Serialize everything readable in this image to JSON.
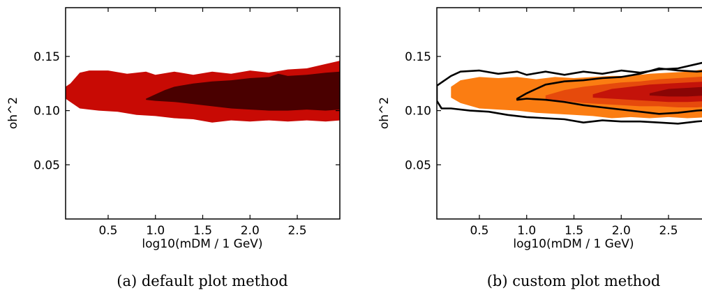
{
  "chart_data": [
    {
      "type": "contour",
      "caption": "(a) default plot method",
      "xlabel": "log10(mDM / 1 GeV)",
      "ylabel": "oh^2",
      "xlim": [
        0.05,
        2.95
      ],
      "ylim": [
        0.0,
        0.195
      ],
      "xticks": [
        "0.5",
        "1.0",
        "1.5",
        "2.0",
        "2.5"
      ],
      "yticks": [
        "0.05",
        "0.10",
        "0.15"
      ],
      "grid": false,
      "colors": {
        "outer": "#c80a04",
        "inner": "#4a0000"
      },
      "levels": [
        {
          "name": "outer",
          "upper": [
            [
              0.05,
              0.122
            ],
            [
              0.1,
              0.125
            ],
            [
              0.2,
              0.135
            ],
            [
              0.3,
              0.137
            ],
            [
              0.5,
              0.137
            ],
            [
              0.7,
              0.134
            ],
            [
              0.9,
              0.136
            ],
            [
              1.0,
              0.133
            ],
            [
              1.2,
              0.136
            ],
            [
              1.4,
              0.133
            ],
            [
              1.6,
              0.136
            ],
            [
              1.8,
              0.134
            ],
            [
              2.0,
              0.137
            ],
            [
              2.2,
              0.135
            ],
            [
              2.4,
              0.138
            ],
            [
              2.6,
              0.139
            ],
            [
              2.8,
              0.143
            ],
            [
              2.95,
              0.146
            ]
          ],
          "lower": [
            [
              2.95,
              0.091
            ],
            [
              2.8,
              0.09
            ],
            [
              2.6,
              0.091
            ],
            [
              2.4,
              0.09
            ],
            [
              2.2,
              0.091
            ],
            [
              2.0,
              0.09
            ],
            [
              1.8,
              0.091
            ],
            [
              1.6,
              0.089
            ],
            [
              1.4,
              0.092
            ],
            [
              1.2,
              0.093
            ],
            [
              1.0,
              0.095
            ],
            [
              0.8,
              0.096
            ],
            [
              0.6,
              0.099
            ],
            [
              0.4,
              0.1
            ],
            [
              0.2,
              0.102
            ],
            [
              0.1,
              0.108
            ],
            [
              0.05,
              0.111
            ]
          ]
        },
        {
          "name": "inner",
          "upper": [
            [
              0.9,
              0.111
            ],
            [
              1.0,
              0.115
            ],
            [
              1.1,
              0.119
            ],
            [
              1.2,
              0.122
            ],
            [
              1.4,
              0.125
            ],
            [
              1.6,
              0.127
            ],
            [
              1.8,
              0.128
            ],
            [
              2.0,
              0.13
            ],
            [
              2.2,
              0.131
            ],
            [
              2.3,
              0.134
            ],
            [
              2.4,
              0.132
            ],
            [
              2.6,
              0.133
            ],
            [
              2.8,
              0.135
            ],
            [
              2.95,
              0.136
            ]
          ],
          "lower": [
            [
              2.95,
              0.101
            ],
            [
              2.8,
              0.1
            ],
            [
              2.6,
              0.101
            ],
            [
              2.4,
              0.1
            ],
            [
              2.2,
              0.1
            ],
            [
              2.0,
              0.101
            ],
            [
              1.8,
              0.102
            ],
            [
              1.6,
              0.104
            ],
            [
              1.4,
              0.106
            ],
            [
              1.2,
              0.108
            ],
            [
              1.0,
              0.109
            ],
            [
              0.9,
              0.11
            ]
          ]
        }
      ]
    },
    {
      "type": "contour",
      "caption": "(b) custom plot method",
      "xlabel": "log10(mDM / 1 GeV)",
      "ylabel": "oh^2",
      "xlim": [
        0.05,
        2.95
      ],
      "ylim": [
        0.0,
        0.195
      ],
      "xticks": [
        "0.5",
        "1.0",
        "1.5",
        "2.0",
        "2.5"
      ],
      "yticks": [
        "0.05",
        "0.10",
        "0.15"
      ],
      "grid": false,
      "colors": {
        "fill_outer": "#fb7d12",
        "fill_mid": "#e64a0c",
        "fill_inner": "#c4130a",
        "fill_core": "#8a0505",
        "contour_line": "#000000"
      },
      "levels": [
        {
          "name": "fill_outer",
          "upper": [
            [
              0.2,
              0.122
            ],
            [
              0.3,
              0.128
            ],
            [
              0.5,
              0.131
            ],
            [
              0.7,
              0.13
            ],
            [
              0.9,
              0.131
            ],
            [
              1.1,
              0.129
            ],
            [
              1.3,
              0.131
            ],
            [
              1.5,
              0.13
            ],
            [
              1.7,
              0.131
            ],
            [
              1.9,
              0.132
            ],
            [
              2.1,
              0.132
            ],
            [
              2.3,
              0.134
            ],
            [
              2.5,
              0.135
            ],
            [
              2.7,
              0.136
            ],
            [
              2.95,
              0.139
            ]
          ],
          "lower": [
            [
              2.95,
              0.094
            ],
            [
              2.7,
              0.093
            ],
            [
              2.5,
              0.094
            ],
            [
              2.3,
              0.093
            ],
            [
              2.1,
              0.094
            ],
            [
              1.9,
              0.093
            ],
            [
              1.7,
              0.095
            ],
            [
              1.5,
              0.096
            ],
            [
              1.3,
              0.097
            ],
            [
              1.1,
              0.098
            ],
            [
              0.9,
              0.1
            ],
            [
              0.7,
              0.101
            ],
            [
              0.5,
              0.102
            ],
            [
              0.3,
              0.107
            ],
            [
              0.2,
              0.112
            ]
          ]
        },
        {
          "name": "fill_mid",
          "upper": [
            [
              1.2,
              0.114
            ],
            [
              1.4,
              0.119
            ],
            [
              1.6,
              0.122
            ],
            [
              1.8,
              0.124
            ],
            [
              2.0,
              0.126
            ],
            [
              2.2,
              0.127
            ],
            [
              2.4,
              0.129
            ],
            [
              2.6,
              0.13
            ],
            [
              2.8,
              0.131
            ],
            [
              2.95,
              0.132
            ]
          ],
          "lower": [
            [
              2.95,
              0.104
            ],
            [
              2.8,
              0.103
            ],
            [
              2.6,
              0.103
            ],
            [
              2.4,
              0.104
            ],
            [
              2.2,
              0.104
            ],
            [
              2.0,
              0.105
            ],
            [
              1.8,
              0.106
            ],
            [
              1.6,
              0.107
            ],
            [
              1.4,
              0.109
            ],
            [
              1.2,
              0.11
            ]
          ]
        },
        {
          "name": "fill_inner",
          "upper": [
            [
              1.7,
              0.115
            ],
            [
              1.9,
              0.12
            ],
            [
              2.1,
              0.122
            ],
            [
              2.3,
              0.124
            ],
            [
              2.5,
              0.125
            ],
            [
              2.7,
              0.126
            ],
            [
              2.95,
              0.127
            ]
          ],
          "lower": [
            [
              2.95,
              0.109
            ],
            [
              2.7,
              0.108
            ],
            [
              2.5,
              0.108
            ],
            [
              2.3,
              0.109
            ],
            [
              2.1,
              0.11
            ],
            [
              1.9,
              0.111
            ],
            [
              1.7,
              0.112
            ]
          ]
        },
        {
          "name": "fill_core",
          "upper": [
            [
              2.3,
              0.116
            ],
            [
              2.5,
              0.12
            ],
            [
              2.7,
              0.121
            ],
            [
              2.9,
              0.122
            ]
          ],
          "lower": [
            [
              2.9,
              0.114
            ],
            [
              2.7,
              0.113
            ],
            [
              2.5,
              0.113
            ],
            [
              2.3,
              0.114
            ]
          ]
        },
        {
          "name": "contour_line",
          "upper": [
            [
              0.05,
              0.123
            ],
            [
              0.1,
              0.126
            ],
            [
              0.2,
              0.132
            ],
            [
              0.3,
              0.136
            ],
            [
              0.5,
              0.137
            ],
            [
              0.7,
              0.134
            ],
            [
              0.9,
              0.136
            ],
            [
              1.0,
              0.133
            ],
            [
              1.2,
              0.136
            ],
            [
              1.4,
              0.133
            ],
            [
              1.6,
              0.136
            ],
            [
              1.8,
              0.134
            ],
            [
              2.0,
              0.137
            ],
            [
              2.2,
              0.135
            ],
            [
              2.4,
              0.138
            ],
            [
              2.6,
              0.139
            ],
            [
              2.8,
              0.143
            ],
            [
              2.95,
              0.146
            ]
          ],
          "lower": [
            [
              2.95,
              0.091
            ],
            [
              2.8,
              0.09
            ],
            [
              2.6,
              0.088
            ],
            [
              2.4,
              0.089
            ],
            [
              2.2,
              0.09
            ],
            [
              2.0,
              0.09
            ],
            [
              1.8,
              0.091
            ],
            [
              1.6,
              0.089
            ],
            [
              1.4,
              0.092
            ],
            [
              1.2,
              0.093
            ],
            [
              1.0,
              0.094
            ],
            [
              0.8,
              0.096
            ],
            [
              0.6,
              0.099
            ],
            [
              0.4,
              0.1
            ],
            [
              0.2,
              0.102
            ],
            [
              0.1,
              0.102
            ],
            [
              0.05,
              0.109
            ]
          ]
        },
        {
          "name": "contour_line",
          "upper": [
            [
              0.9,
              0.111
            ],
            [
              1.0,
              0.116
            ],
            [
              1.1,
              0.12
            ],
            [
              1.2,
              0.124
            ],
            [
              1.4,
              0.127
            ],
            [
              1.6,
              0.128
            ],
            [
              1.8,
              0.13
            ],
            [
              2.0,
              0.131
            ],
            [
              2.2,
              0.134
            ],
            [
              2.4,
              0.139
            ],
            [
              2.6,
              0.137
            ],
            [
              2.8,
              0.136
            ],
            [
              2.95,
              0.137
            ]
          ],
          "lower": [
            [
              2.95,
              0.101
            ],
            [
              2.8,
              0.1
            ],
            [
              2.6,
              0.098
            ],
            [
              2.4,
              0.097
            ],
            [
              2.2,
              0.099
            ],
            [
              2.0,
              0.101
            ],
            [
              1.8,
              0.103
            ],
            [
              1.6,
              0.105
            ],
            [
              1.4,
              0.108
            ],
            [
              1.2,
              0.11
            ],
            [
              1.0,
              0.111
            ],
            [
              0.9,
              0.11
            ]
          ]
        }
      ]
    }
  ]
}
